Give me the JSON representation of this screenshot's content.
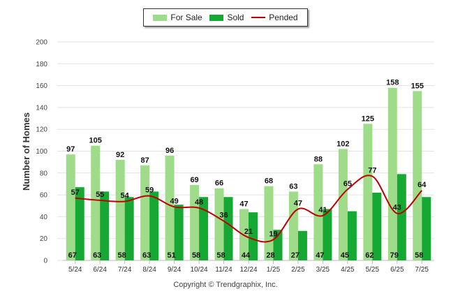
{
  "legend": {
    "for_sale": "For Sale",
    "sold": "Sold",
    "pended": "Pended"
  },
  "footer": "Copyright © Trendgraphix, Inc.",
  "colors": {
    "for_sale": "#9fdc8a",
    "sold": "#15a832",
    "pended": "#c00000"
  },
  "chart_data": {
    "type": "bar",
    "ylabel": "Number of Homes",
    "xlabel": "",
    "ylim": [
      0,
      200
    ],
    "yticks": [
      0,
      20,
      40,
      60,
      80,
      100,
      120,
      140,
      160,
      180,
      200
    ],
    "grid": true,
    "legend_position": "top-center",
    "categories": [
      "5/24",
      "6/24",
      "7/24",
      "8/24",
      "9/24",
      "10/24",
      "11/24",
      "12/24",
      "1/25",
      "2/25",
      "3/25",
      "4/25",
      "5/25",
      "6/25",
      "7/25"
    ],
    "series": [
      {
        "name": "For Sale",
        "type": "bar",
        "values": [
          97,
          105,
          92,
          87,
          96,
          69,
          66,
          47,
          68,
          63,
          88,
          102,
          125,
          158,
          155
        ]
      },
      {
        "name": "Sold",
        "type": "bar",
        "values": [
          67,
          63,
          58,
          63,
          51,
          58,
          58,
          44,
          28,
          27,
          47,
          45,
          62,
          79,
          58
        ]
      },
      {
        "name": "Pended",
        "type": "line",
        "values": [
          57,
          55,
          54,
          59,
          49,
          48,
          36,
          21,
          19,
          47,
          41,
          65,
          77,
          43,
          64
        ]
      }
    ]
  }
}
